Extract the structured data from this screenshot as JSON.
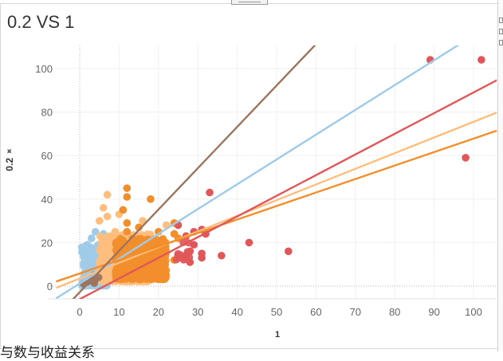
{
  "page": {
    "title": "0.2 VS 1",
    "caption_fragment": "与数与收益关系"
  },
  "icons": {
    "y_axis_pin": "pin-icon"
  },
  "chart_data": {
    "type": "scatter",
    "title": "0.2 VS 1",
    "xlabel": "1",
    "ylabel": "0.2",
    "xlim": [
      -6,
      109
    ],
    "ylim": [
      -6,
      109
    ],
    "x_ticks": [
      0,
      10,
      20,
      30,
      40,
      50,
      60,
      70,
      80,
      90,
      100
    ],
    "y_ticks": [
      0,
      20,
      40,
      60,
      80,
      100
    ],
    "grid": true,
    "zero_lines": true,
    "series": [
      {
        "name": "light-blue",
        "color": "#a0cbe8",
        "cluster": {
          "x": [
            0.5,
            7
          ],
          "y": [
            0,
            20
          ],
          "count": 320
        },
        "points": [
          [
            4,
            25
          ],
          [
            3,
            22
          ],
          [
            2,
            18
          ],
          [
            5,
            16
          ],
          [
            1,
            15
          ],
          [
            6,
            24
          ],
          [
            2,
            4
          ],
          [
            3,
            9
          ],
          [
            6,
            13
          ]
        ],
        "trend": {
          "slope": 1.14,
          "intercept": 1.2
        }
      },
      {
        "name": "light-orange",
        "color": "#ffbe7d",
        "cluster": {
          "x": [
            5,
            18
          ],
          "y": [
            2,
            24
          ],
          "count": 520
        },
        "points": [
          [
            7,
            42
          ],
          [
            6,
            36
          ],
          [
            7,
            32
          ],
          [
            10,
            33
          ],
          [
            9,
            25
          ],
          [
            16,
            30
          ],
          [
            22,
            28
          ],
          [
            5,
            30
          ],
          [
            8,
            21
          ]
        ],
        "trend": {
          "slope": 0.72,
          "intercept": 3.5
        }
      },
      {
        "name": "orange",
        "color": "#f28e2b",
        "cluster": {
          "x": [
            9,
            22
          ],
          "y": [
            3,
            22
          ],
          "count": 520
        },
        "points": [
          [
            12,
            45
          ],
          [
            12,
            41
          ],
          [
            18,
            40
          ],
          [
            11,
            35
          ],
          [
            12,
            29
          ],
          [
            12,
            25
          ],
          [
            15,
            27
          ],
          [
            20,
            25
          ],
          [
            24,
            29
          ],
          [
            24,
            24
          ],
          [
            25,
            22
          ],
          [
            21,
            19
          ],
          [
            24,
            12
          ],
          [
            19,
            13
          ]
        ],
        "trend": {
          "slope": 0.62,
          "intercept": 5.8
        }
      },
      {
        "name": "red",
        "color": "#e15759",
        "cluster": {
          "x": [
            24,
            28
          ],
          "y": [
            12,
            22
          ],
          "count": 12
        },
        "points": [
          [
            33,
            43
          ],
          [
            25,
            28
          ],
          [
            29,
            25
          ],
          [
            31,
            26
          ],
          [
            32,
            24
          ],
          [
            27,
            23
          ],
          [
            29,
            19
          ],
          [
            28,
            16
          ],
          [
            31,
            15
          ],
          [
            31,
            13
          ],
          [
            28,
            11
          ],
          [
            27,
            14
          ],
          [
            36,
            14
          ],
          [
            43,
            20
          ],
          [
            53,
            16
          ],
          [
            89,
            104
          ],
          [
            102,
            104
          ],
          [
            98,
            59
          ]
        ],
        "trend": {
          "slope": 0.95,
          "intercept": -6.0
        }
      },
      {
        "name": "brown",
        "color": "#9c755f",
        "cluster": {
          "x": [
            2,
            5
          ],
          "y": [
            1,
            6
          ],
          "count": 10
        },
        "points": [
          [
            2,
            2
          ],
          [
            3,
            3
          ],
          [
            1,
            1
          ]
        ],
        "trend": {
          "slope": 1.9,
          "intercept": -2.8
        }
      }
    ]
  }
}
